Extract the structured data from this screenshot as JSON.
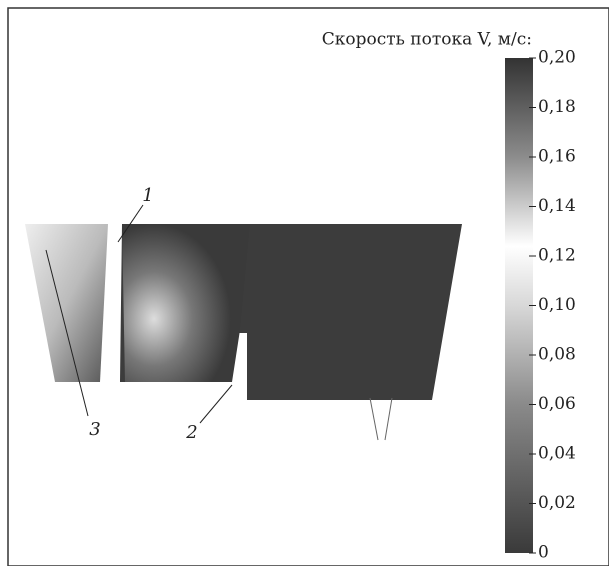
{
  "chart_data": {
    "type": "contour",
    "colorbar_label": "Скорость потока V, м/с:",
    "clim": [
      0,
      0.2
    ],
    "cticks": [
      0,
      {
        "value": 0.02,
        "label": "0,02"
      },
      {
        "value": 0.04,
        "label": "0,04"
      },
      {
        "value": 0.06,
        "label": "0,06"
      },
      {
        "value": 0.08,
        "label": "0,08"
      },
      {
        "value": 0.1,
        "label": "0,10"
      },
      {
        "value": 0.12,
        "label": "0,12"
      },
      {
        "value": 0.14,
        "label": "0,14"
      },
      {
        "value": 0.16,
        "label": "0,16"
      },
      {
        "value": 0.18,
        "label": "0,18"
      },
      {
        "value": 0.2,
        "label": "0,20"
      }
    ],
    "annotations": [
      "1",
      "2",
      "3"
    ]
  }
}
